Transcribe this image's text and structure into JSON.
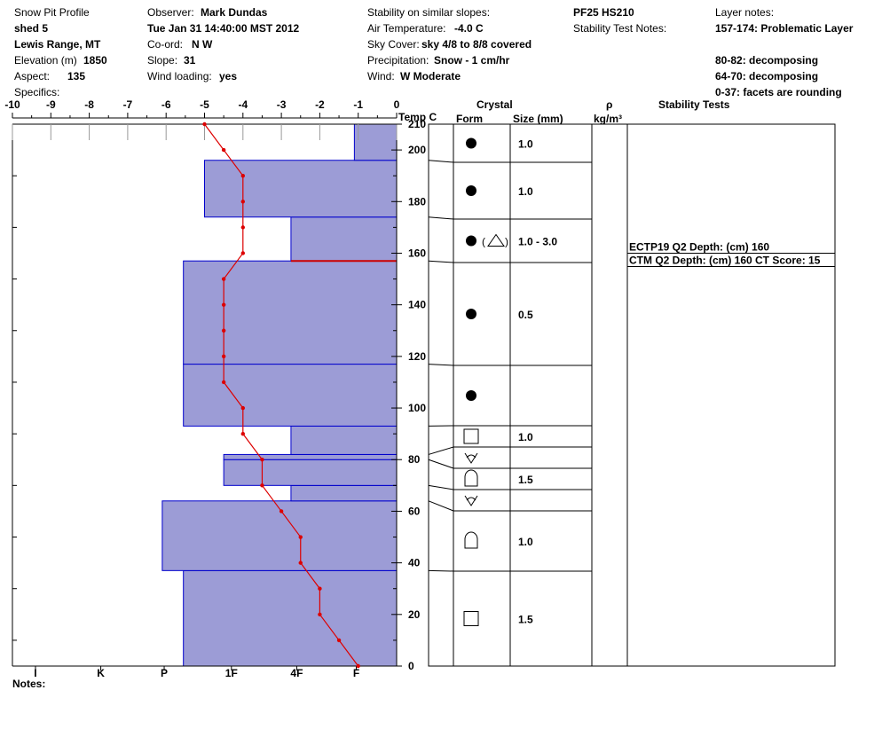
{
  "header": {
    "title": "Snow Pit Profile",
    "pit_name": "shed 5",
    "location": "Lewis Range, MT",
    "elevation_label": "Elevation (m)",
    "elevation_value": "1850",
    "aspect_label": "Aspect:",
    "aspect_value": "135",
    "specifics_label": "Specifics:",
    "observer_label": "Observer:",
    "observer_value": "Mark Dundas",
    "datetime": "Tue Jan 31 14:40:00 MST 2012",
    "coord_label": "Co-ord:",
    "coord_value": "N  W",
    "slope_label": "Slope:",
    "slope_value": "31",
    "wind_loading_label": "Wind loading:",
    "wind_loading_value": "yes",
    "stability_label": "Stability on similar slopes:",
    "air_temp_label": "Air Temperature:",
    "air_temp_value": "-4.0 C",
    "sky_label": "Sky Cover:",
    "sky_value": "sky 4/8 to 8/8 covered",
    "precip_label": "Precipitation:",
    "precip_value": "Snow - 1 cm/hr",
    "wind_label": "Wind:",
    "wind_value": "W Moderate",
    "pf_hs": "PF25 HS210",
    "stability_notes_label": "Stability Test Notes:",
    "layer_notes_label": "Layer notes:",
    "layer_notes": [
      "157-174: Problematic Layer",
      "80-82: decomposing",
      "64-70: decomposing",
      "0-37: facets are rounding"
    ]
  },
  "columns": {
    "temp": "Temp C",
    "crystal": "Crystal",
    "form": "Form",
    "size": "Size (mm)",
    "density_symbol": "ρ",
    "density_unit": "kg/m³",
    "stability": "Stability Tests"
  },
  "notes_label": "Notes:",
  "colors": {
    "hardness_fill": "#9c9cd6",
    "hardness_stroke": "#0000cc",
    "temp_line": "#dd0000"
  },
  "chart_data": {
    "type": "area",
    "hs": 210,
    "temp_axis": {
      "min": -10,
      "max": 0,
      "ticks": [
        "-10",
        "-9",
        "-8",
        "-7",
        "-6",
        "-5",
        "-4",
        "-3",
        "-2",
        "-1",
        "0"
      ]
    },
    "height_axis": {
      "min": 0,
      "max": 210,
      "ticks": [
        "0",
        "20",
        "40",
        "60",
        "80",
        "100",
        "120",
        "140",
        "160",
        "180",
        "200",
        "210"
      ]
    },
    "hardness_axis": {
      "ticks": [
        "I",
        "K",
        "P",
        "1F",
        "4F",
        "F"
      ],
      "tick_temps": [
        -9.4,
        -7.7,
        -6.05,
        -4.3,
        -2.6,
        -1.05
      ]
    },
    "hardness_layers": [
      {
        "bottom": 0,
        "top": 37,
        "hardness_temp": -5.55
      },
      {
        "bottom": 37,
        "top": 64,
        "hardness_temp": -6.1
      },
      {
        "bottom": 64,
        "top": 70,
        "hardness_temp": -2.75
      },
      {
        "bottom": 70,
        "top": 80,
        "hardness_temp": -4.5
      },
      {
        "bottom": 80,
        "top": 82,
        "hardness_temp": -4.5
      },
      {
        "bottom": 82,
        "top": 93,
        "hardness_temp": -2.75
      },
      {
        "bottom": 93,
        "top": 117,
        "hardness_temp": -5.55
      },
      {
        "bottom": 117,
        "top": 157,
        "hardness_temp": -5.55
      },
      {
        "bottom": 157,
        "top": 174,
        "hardness_temp": -2.75
      },
      {
        "bottom": 174,
        "top": 196,
        "hardness_temp": -5.0
      },
      {
        "bottom": 196,
        "top": 210,
        "hardness_temp": -1.1
      }
    ],
    "critical_layer_height": 157,
    "temperature_profile": [
      {
        "height": 0,
        "temp": -1.0
      },
      {
        "height": 10,
        "temp": -1.5
      },
      {
        "height": 20,
        "temp": -2.0
      },
      {
        "height": 30,
        "temp": -2.0
      },
      {
        "height": 40,
        "temp": -2.5
      },
      {
        "height": 50,
        "temp": -2.5
      },
      {
        "height": 60,
        "temp": -3.0
      },
      {
        "height": 70,
        "temp": -3.5
      },
      {
        "height": 80,
        "temp": -3.5
      },
      {
        "height": 90,
        "temp": -4.0
      },
      {
        "height": 100,
        "temp": -4.0
      },
      {
        "height": 110,
        "temp": -4.5
      },
      {
        "height": 120,
        "temp": -4.5
      },
      {
        "height": 130,
        "temp": -4.5
      },
      {
        "height": 140,
        "temp": -4.5
      },
      {
        "height": 150,
        "temp": -4.5
      },
      {
        "height": 160,
        "temp": -4.0
      },
      {
        "height": 170,
        "temp": -4.0
      },
      {
        "height": 180,
        "temp": -4.0
      },
      {
        "height": 190,
        "temp": -4.0
      },
      {
        "height": 200,
        "temp": -4.5
      },
      {
        "height": 210,
        "temp": -5.0
      }
    ],
    "crystal_layers": [
      {
        "bottom": 0,
        "top": 37,
        "form": "facet",
        "size": "1.5"
      },
      {
        "bottom": 37,
        "top": 64,
        "form": "depth-hoar",
        "size": "1.0"
      },
      {
        "bottom": 64,
        "top": 70,
        "form": "surface-hoar",
        "size": ""
      },
      {
        "bottom": 70,
        "top": 80,
        "form": "depth-hoar",
        "size": "1.5"
      },
      {
        "bottom": 80,
        "top": 82,
        "form": "surface-hoar",
        "size": ""
      },
      {
        "bottom": 82,
        "top": 93,
        "form": "facet",
        "size": "1.0"
      },
      {
        "bottom": 93,
        "top": 117,
        "form": "round",
        "size": ""
      },
      {
        "bottom": 117,
        "top": 157,
        "form": "round",
        "size": "0.5"
      },
      {
        "bottom": 157,
        "top": 174,
        "form": "round-plus-graupel",
        "size": "1.0 - 3.0"
      },
      {
        "bottom": 174,
        "top": 196,
        "form": "round",
        "size": "1.0"
      },
      {
        "bottom": 196,
        "top": 210,
        "form": "round",
        "size": "1.0"
      }
    ],
    "stability_tests": [
      {
        "depth": 160,
        "text": "ECTP19 Q2 Depth: (cm) 160"
      },
      {
        "depth": 160,
        "text": "CTM Q2 Depth: (cm) 160 CT Score: 15"
      }
    ]
  }
}
